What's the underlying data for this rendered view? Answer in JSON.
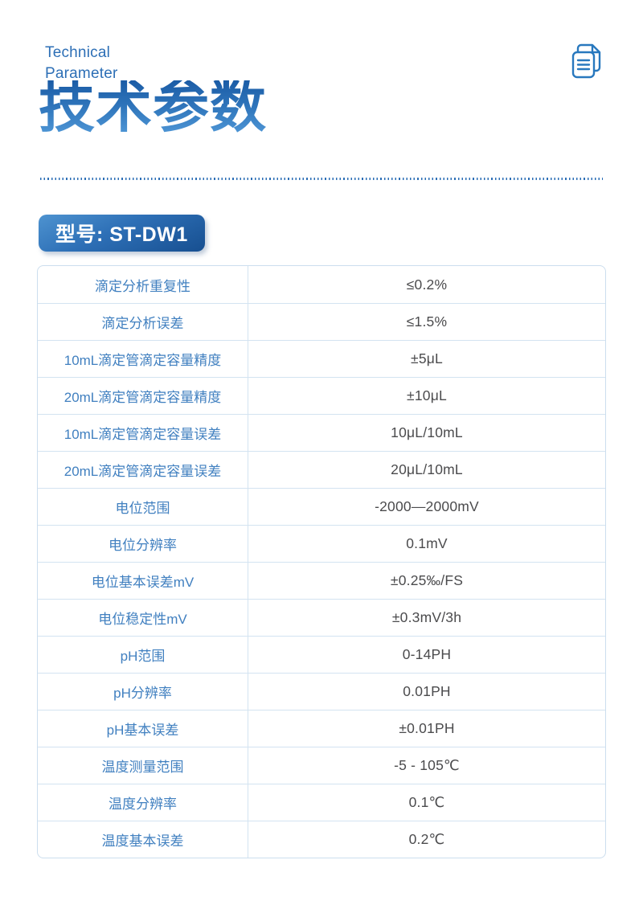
{
  "header": {
    "eyebrow_line1": "Technical",
    "eyebrow_line2": "Parameter",
    "title": "技术参数",
    "icon": "copy-documents-icon"
  },
  "model_badge": {
    "label": "型号: ST-DW1"
  },
  "table": {
    "rows": [
      {
        "label": "滴定分析重复性",
        "value": "≤0.2%"
      },
      {
        "label": "滴定分析误差",
        "value": "≤1.5%"
      },
      {
        "label": "10mL滴定管滴定容量精度",
        "value": "±5μL"
      },
      {
        "label": "20mL滴定管滴定容量精度",
        "value": "±10μL"
      },
      {
        "label": "10mL滴定管滴定容量误差",
        "value": "10μL/10mL"
      },
      {
        "label": "20mL滴定管滴定容量误差",
        "value": "20μL/10mL"
      },
      {
        "label": "电位范围",
        "value": "-2000—2000mV"
      },
      {
        "label": "电位分辨率",
        "value": "0.1mV"
      },
      {
        "label": "电位基本误差mV",
        "value": "±0.25‰/FS"
      },
      {
        "label": "电位稳定性mV",
        "value": "±0.3mV/3h"
      },
      {
        "label": "pH范围",
        "value": "0-14PH"
      },
      {
        "label": "pH分辨率",
        "value": "0.01PH"
      },
      {
        "label": "pH基本误差",
        "value": "±0.01PH"
      },
      {
        "label": "温度测量范围",
        "value": "-5 - 105℃"
      },
      {
        "label": "温度分辨率",
        "value": "0.1℃"
      },
      {
        "label": "温度基本误差",
        "value": "0.2℃"
      }
    ]
  },
  "colors": {
    "accent_blue": "#2d6fb6",
    "label_blue": "#4180c0",
    "value_gray": "#4b4b4d",
    "table_border": "#d3e3f1",
    "title_gradient_top": "#1b5ca6",
    "title_gradient_bottom": "#5199d8",
    "badge_gradient_start": "#4e93d0",
    "badge_gradient_end": "#174f90"
  }
}
